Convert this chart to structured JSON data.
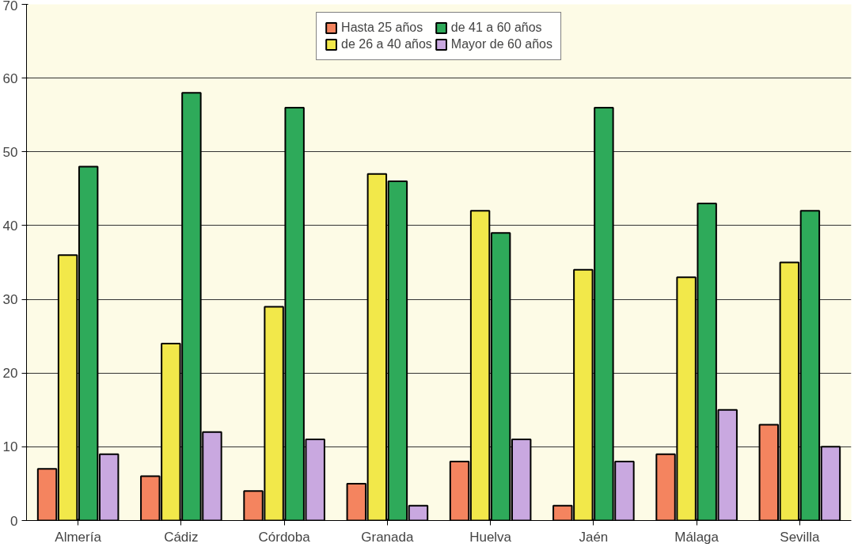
{
  "chart_data": {
    "type": "bar",
    "categories": [
      "Almería",
      "Cádiz",
      "Córdoba",
      "Granada",
      "Huelva",
      "Jaén",
      "Málaga",
      "Sevilla"
    ],
    "series": [
      {
        "name": "Hasta 25 años",
        "color": "#f4845f",
        "values": [
          7,
          6,
          4,
          5,
          8,
          2,
          9,
          13
        ]
      },
      {
        "name": "de 26 a 40 años",
        "color": "#f2e84a",
        "values": [
          36,
          24,
          29,
          47,
          42,
          34,
          33,
          35
        ]
      },
      {
        "name": "de 41 a 60 años",
        "color": "#2eaa5a",
        "values": [
          48,
          58,
          56,
          46,
          39,
          56,
          43,
          42
        ]
      },
      {
        "name": "Mayor de 60 años",
        "color": "#c9a8e0",
        "values": [
          9,
          12,
          11,
          2,
          11,
          8,
          15,
          10
        ]
      }
    ],
    "ylim": [
      0,
      70
    ],
    "yticks": [
      0,
      10,
      20,
      30,
      40,
      50,
      60,
      70
    ],
    "grid": "y",
    "legend": "top"
  }
}
